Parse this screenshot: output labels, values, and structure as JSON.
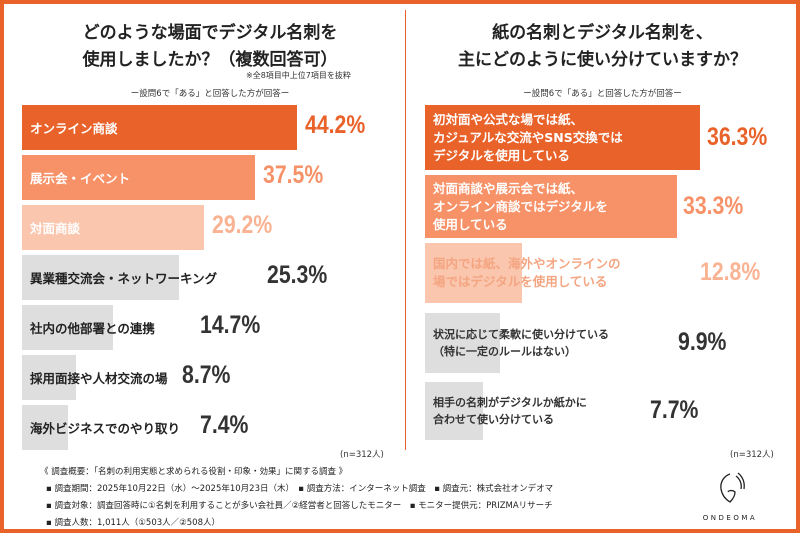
{
  "left": {
    "title_line1": "どのような場面でデジタル名刺を",
    "title_line2": "使用しましたか？（複数回答可）",
    "note": "※全8項目中上位7項目を抜粋",
    "subtitle": "ー設問6で「ある」と回答した方が回答ー",
    "n": "(n=312人)"
  },
  "right": {
    "title_line1": "紙の名刺とデジタル名刺を、",
    "title_line2": "主にどのように使い分けていますか？",
    "subtitle": "ー設問6で「ある」と回答した方が回答ー",
    "n": "(n=312人)"
  },
  "colors": {
    "dark": "#e8622a",
    "mid": "#f79268",
    "light": "#fbc6ae",
    "gray": "#dedede",
    "frame": "#e8622a"
  },
  "chart_data": [
    {
      "type": "bar",
      "orientation": "horizontal",
      "categories": [
        "オンライン商談",
        "展示会・イベント",
        "対面商談",
        "異業種交流会・ネットワーキング",
        "社内の他部署との連携",
        "採用面接や人材交流の場",
        "海外ビジネスでのやり取り"
      ],
      "values": [
        44.2,
        37.5,
        29.2,
        25.3,
        14.7,
        8.7,
        7.4
      ],
      "labels": [
        "44.2%",
        "37.5%",
        "29.2%",
        "25.3%",
        "14.7%",
        "8.7%",
        "7.4%"
      ],
      "unit": "%"
    },
    {
      "type": "bar",
      "orientation": "horizontal",
      "categories": [
        [
          "初対面や公式な場では紙、",
          "カジュアルな交流やSNS交換では",
          "デジタルを使用している"
        ],
        [
          "対面商談や展示会では紙、",
          "オンライン商談ではデジタルを",
          "使用している"
        ],
        [
          "国内では紙、海外やオンラインの",
          "場ではデジタルを使用している"
        ],
        [
          "状況に応じて柔軟に使い分けている",
          "（特に一定のルールはない）"
        ],
        [
          "相手の名刺がデジタルか紙かに",
          "合わせて使い分けている"
        ]
      ],
      "values": [
        36.3,
        33.3,
        12.8,
        9.9,
        7.7
      ],
      "labels": [
        "36.3%",
        "33.3%",
        "12.8%",
        "9.9%",
        "7.7%"
      ],
      "unit": "%"
    }
  ],
  "footer": {
    "lines": [
      "《 調査概要：「名刺の利用実態と求められる役割・印象・効果」に関する調査 》",
      "▪ 調査期間：2025年10月22日（水）〜2025年10月23日（木）　▪ 調査方法：インターネット調査　▪ 調査元：株式会社オンデオマ",
      "▪ 調査対象：調査回答時に①名刺を利用することが多い会社員／②経営者と回答したモニター　▪ モニター提供元：PRIZMAリサーチ",
      "▪ 調査人数：1,011人（①503人／②508人）"
    ],
    "logo": "ONDEOMA"
  }
}
